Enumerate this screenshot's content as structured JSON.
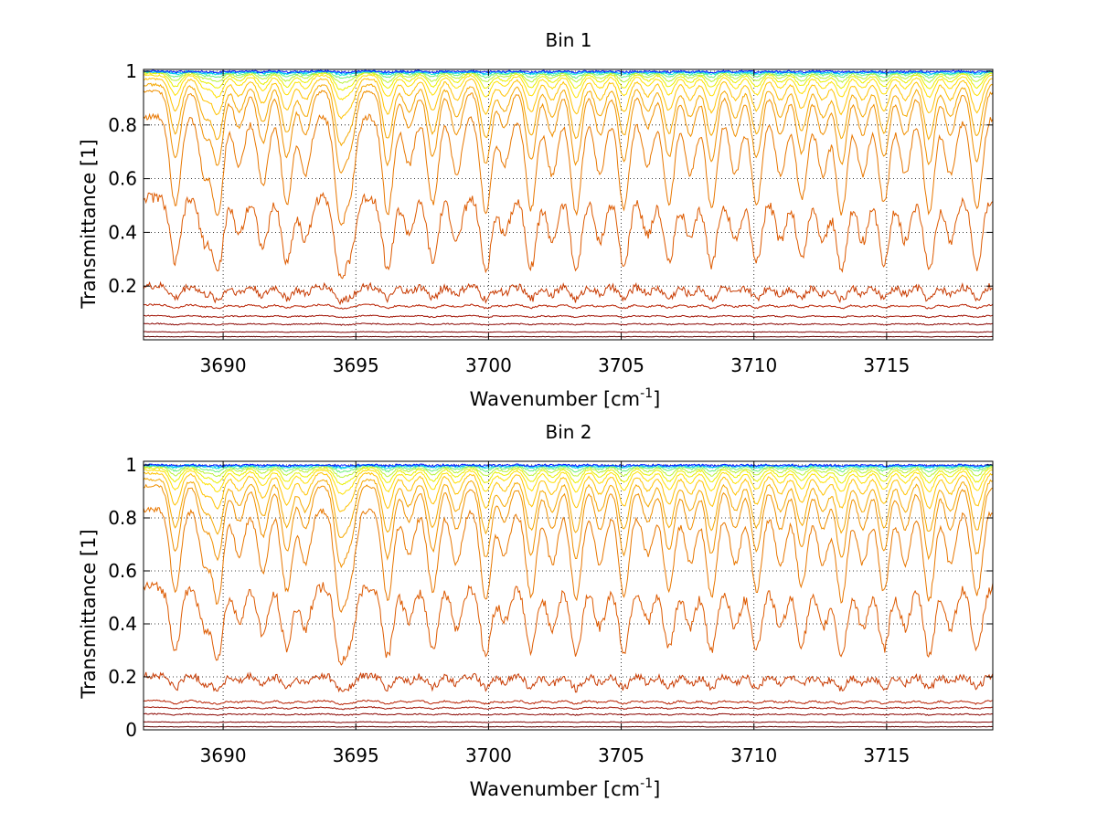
{
  "chart_data": [
    {
      "type": "line",
      "title": "Bin 1",
      "xlabel": "Wavenumber [cm",
      "xlabel_sup": "-1",
      "xlabel_end": "]",
      "ylabel": "Transmittance [1]",
      "xlim": [
        3687.0,
        3719.0
      ],
      "ylim": [
        0.0,
        1.02
      ],
      "xticks": [
        3690,
        3695,
        3700,
        3705,
        3710,
        3715
      ],
      "xtick_labels": [
        "3690",
        "3695",
        "3700",
        "3705",
        "3710",
        "3715"
      ],
      "yticks": [
        0.2,
        0.4,
        0.6,
        0.8,
        1.0
      ],
      "ytick_labels": [
        "0.2",
        "0.4",
        "0.6",
        "0.8",
        "1"
      ],
      "grid": true,
      "colormap": "jet",
      "series": [
        {
          "color": "#0a1cff",
          "baseline": 1.0,
          "depth": 0.003,
          "noise": 0.004
        },
        {
          "color": "#00b4ff",
          "baseline": 0.999,
          "depth": 0.006,
          "noise": 0.004
        },
        {
          "color": "#19e6d9",
          "baseline": 0.998,
          "depth": 0.01,
          "noise": 0.003
        },
        {
          "color": "#6ef07a",
          "baseline": 0.997,
          "depth": 0.02,
          "noise": 0.003
        },
        {
          "color": "#b8f23a",
          "baseline": 0.995,
          "depth": 0.035,
          "noise": 0.003
        },
        {
          "color": "#e8f000",
          "baseline": 0.992,
          "depth": 0.055,
          "noise": 0.003
        },
        {
          "color": "#ffe000",
          "baseline": 0.985,
          "depth": 0.08,
          "noise": 0.003
        },
        {
          "color": "#ffc200",
          "baseline": 0.972,
          "depth": 0.13,
          "noise": 0.004
        },
        {
          "color": "#f5a800",
          "baseline": 0.95,
          "depth": 0.2,
          "noise": 0.005
        },
        {
          "color": "#f09000",
          "baseline": 0.925,
          "depth": 0.27,
          "noise": 0.006
        },
        {
          "color": "#e87700",
          "baseline": 0.83,
          "depth": 0.36,
          "noise": 0.012
        },
        {
          "color": "#dd5a00",
          "baseline": 0.53,
          "depth": 0.27,
          "noise": 0.02
        },
        {
          "color": "#c83a00",
          "baseline": 0.2,
          "depth": 0.05,
          "noise": 0.014
        },
        {
          "color": "#b82000",
          "baseline": 0.13,
          "depth": 0.012,
          "noise": 0.003
        },
        {
          "color": "#a00f00",
          "baseline": 0.09,
          "depth": 0.006,
          "noise": 0.002
        },
        {
          "color": "#8b0500",
          "baseline": 0.06,
          "depth": 0.004,
          "noise": 0.002
        },
        {
          "color": "#800000",
          "baseline": 0.03,
          "depth": 0.002,
          "noise": 0.001
        },
        {
          "color": "#600000",
          "baseline": 0.012,
          "depth": 0.001,
          "noise": 0.001
        }
      ]
    },
    {
      "type": "line",
      "title": "Bin 2",
      "xlabel": "Wavenumber [cm",
      "xlabel_sup": "-1",
      "xlabel_end": "]",
      "ylabel": "Transmittance [1]",
      "xlim": [
        3687.0,
        3719.0
      ],
      "ylim": [
        0.0,
        1.02
      ],
      "xticks": [
        3690,
        3695,
        3700,
        3705,
        3710,
        3715
      ],
      "xtick_labels": [
        "3690",
        "3695",
        "3700",
        "3705",
        "3710",
        "3715"
      ],
      "yticks": [
        0,
        0.2,
        0.4,
        0.6,
        0.8,
        1.0
      ],
      "ytick_labels": [
        "0",
        "0.2",
        "0.4",
        "0.6",
        "0.8",
        "1"
      ],
      "grid": true,
      "colormap": "jet",
      "series": [
        {
          "color": "#0a1cff",
          "baseline": 1.0,
          "depth": 0.003,
          "noise": 0.004
        },
        {
          "color": "#00b4ff",
          "baseline": 0.999,
          "depth": 0.006,
          "noise": 0.004
        },
        {
          "color": "#19e6d9",
          "baseline": 0.998,
          "depth": 0.01,
          "noise": 0.003
        },
        {
          "color": "#6ef07a",
          "baseline": 0.996,
          "depth": 0.02,
          "noise": 0.003
        },
        {
          "color": "#b8f23a",
          "baseline": 0.993,
          "depth": 0.035,
          "noise": 0.003
        },
        {
          "color": "#e8f000",
          "baseline": 0.988,
          "depth": 0.055,
          "noise": 0.003
        },
        {
          "color": "#ffe000",
          "baseline": 0.98,
          "depth": 0.08,
          "noise": 0.003
        },
        {
          "color": "#ffc200",
          "baseline": 0.968,
          "depth": 0.13,
          "noise": 0.004
        },
        {
          "color": "#f5a800",
          "baseline": 0.945,
          "depth": 0.2,
          "noise": 0.005
        },
        {
          "color": "#f09000",
          "baseline": 0.92,
          "depth": 0.27,
          "noise": 0.006
        },
        {
          "color": "#e87700",
          "baseline": 0.83,
          "depth": 0.34,
          "noise": 0.012
        },
        {
          "color": "#dd5a00",
          "baseline": 0.54,
          "depth": 0.26,
          "noise": 0.02
        },
        {
          "color": "#c83a00",
          "baseline": 0.205,
          "depth": 0.05,
          "noise": 0.014
        },
        {
          "color": "#b82000",
          "baseline": 0.11,
          "depth": 0.012,
          "noise": 0.003
        },
        {
          "color": "#a00f00",
          "baseline": 0.085,
          "depth": 0.006,
          "noise": 0.002
        },
        {
          "color": "#8b0500",
          "baseline": 0.06,
          "depth": 0.004,
          "noise": 0.002
        },
        {
          "color": "#800000",
          "baseline": 0.03,
          "depth": 0.002,
          "noise": 0.001
        },
        {
          "color": "#600000",
          "baseline": 0.012,
          "depth": 0.001,
          "noise": 0.001
        }
      ]
    }
  ]
}
